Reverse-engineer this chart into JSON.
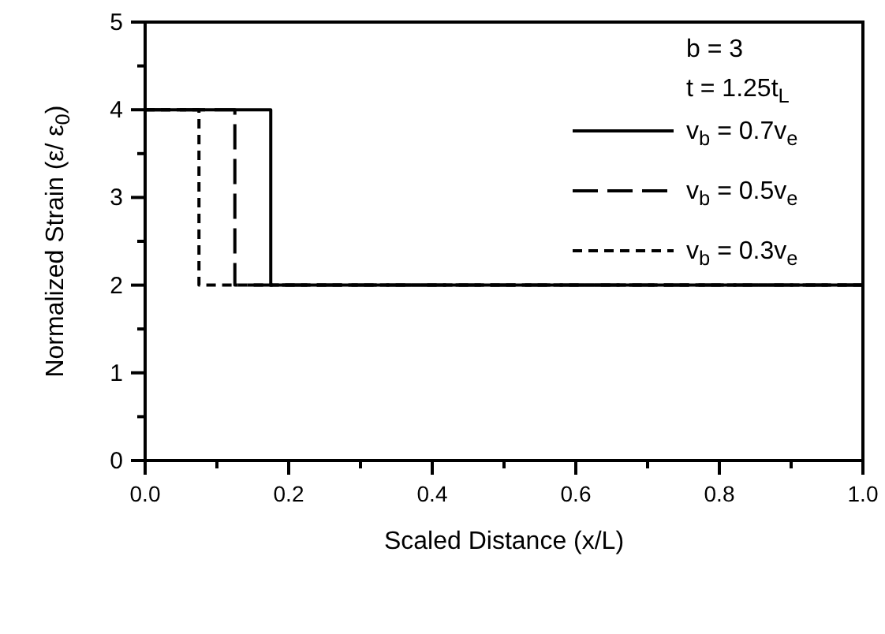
{
  "chart_data": {
    "type": "line",
    "xlabel": "Scaled Distance (x/L)",
    "ylabel": "Normalized Strain (ε/ ε$_{0}$)",
    "xlim": [
      0,
      1
    ],
    "ylim": [
      0,
      5
    ],
    "xticks": [
      {
        "value": 0,
        "label": "0.0"
      },
      {
        "value": 0.1,
        "label": null
      },
      {
        "value": 0.2,
        "label": "0.2"
      },
      {
        "value": 0.3,
        "label": null
      },
      {
        "value": 0.4,
        "label": "0.4"
      },
      {
        "value": 0.5,
        "label": null
      },
      {
        "value": 0.6,
        "label": "0.6"
      },
      {
        "value": 0.7,
        "label": null
      },
      {
        "value": 0.8,
        "label": "0.8"
      },
      {
        "value": 0.9,
        "label": null
      },
      {
        "value": 1,
        "label": "1.0"
      }
    ],
    "yticks": [
      0,
      {
        "value": 0.5,
        "label": null
      },
      1,
      {
        "value": 1.5,
        "label": null
      },
      2,
      {
        "value": 2.5,
        "label": null
      },
      3,
      {
        "value": 3.5,
        "label": null
      },
      4,
      {
        "value": 4.5,
        "label": null
      },
      5
    ],
    "grid": false,
    "legend": "top right",
    "annotations": [
      "b = 3",
      "t = 1.25t$_{L}$"
    ],
    "series": [
      {
        "name": "v$_{b}$ = 0.7v$_{e}$",
        "color": "#000000",
        "line_style": "solid",
        "x": [
          0,
          0.175,
          0.175,
          1
        ],
        "values": [
          4,
          4,
          2,
          2
        ]
      },
      {
        "name": "v$_{b}$ = 0.5v$_{e}$",
        "color": "#000000",
        "line_style": "longdash",
        "x": [
          0,
          0.125,
          0.125,
          1
        ],
        "values": [
          4,
          4,
          2,
          2
        ]
      },
      {
        "name": "v$_{b}$ = 0.3v$_{e}$",
        "color": "#000000",
        "line_style": "dashed",
        "x": [
          0,
          0.075,
          0.075,
          1
        ],
        "values": [
          4,
          4,
          2,
          2
        ]
      }
    ]
  }
}
